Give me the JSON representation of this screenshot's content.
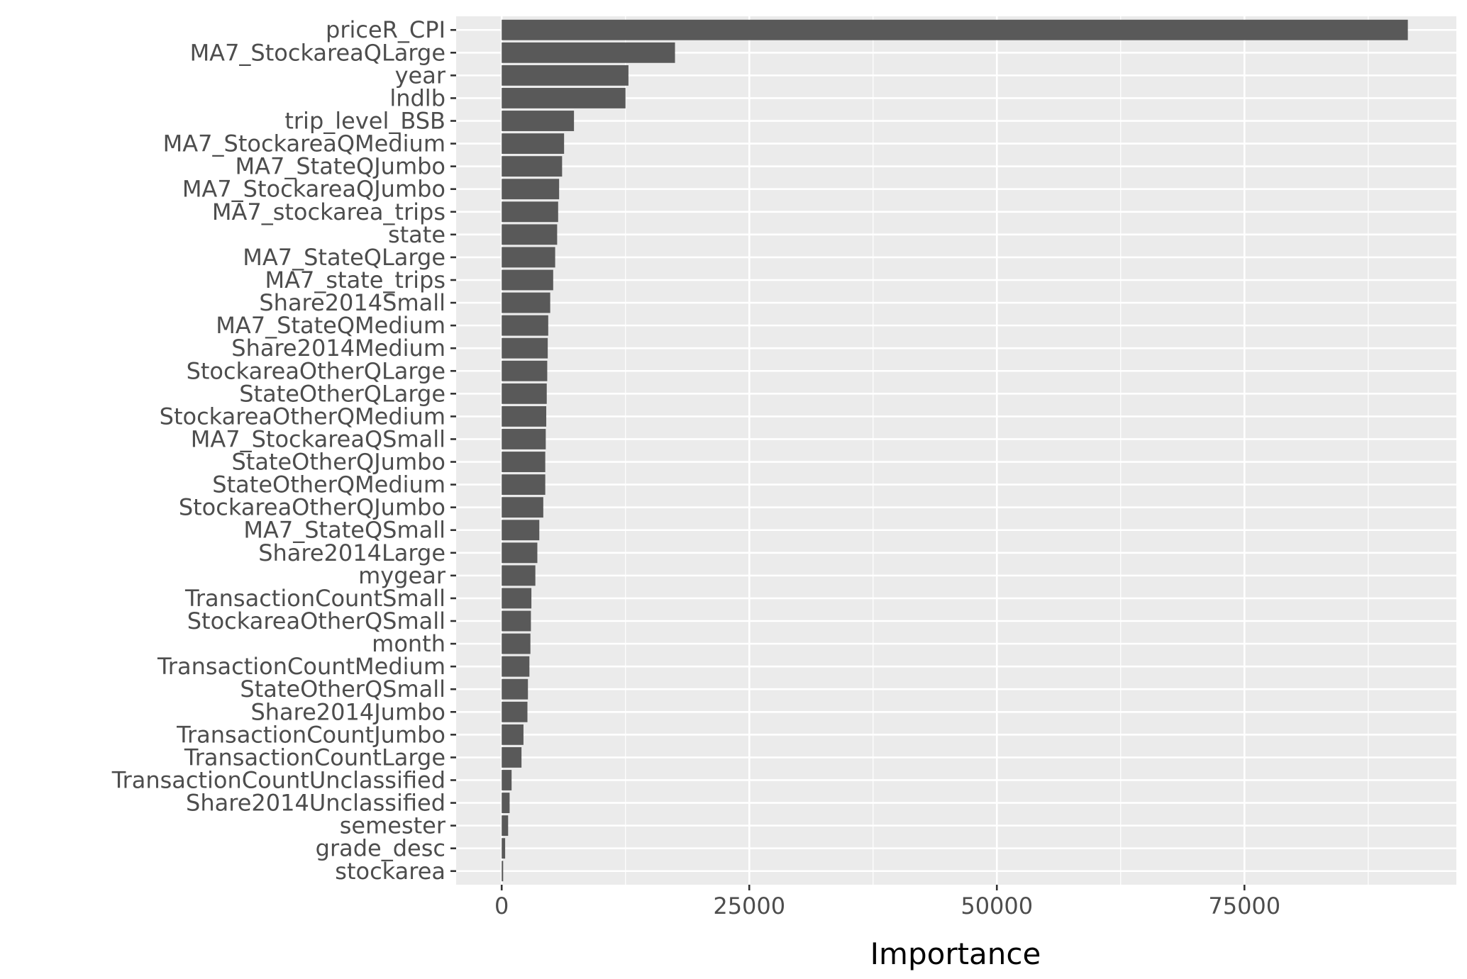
{
  "chart_data": {
    "type": "bar",
    "orientation": "horizontal",
    "xlabel": "Importance",
    "ylabel": "",
    "xlim": [
      -4600,
      96400
    ],
    "x_ticks": [
      0,
      25000,
      50000,
      75000
    ],
    "x_tick_labels": [
      "0",
      "25000",
      "50000",
      "75000"
    ],
    "grid": true,
    "colors": {
      "panel": "#ebebeb",
      "grid": "#ffffff",
      "bar": "#595959",
      "text": "#4d4d4d",
      "tick": "#333333"
    },
    "categories": [
      "priceR_CPI",
      "MA7_StockareaQLarge",
      "year",
      "lndlb",
      "trip_level_BSB",
      "MA7_StockareaQMedium",
      "MA7_StateQJumbo",
      "MA7_StockareaQJumbo",
      "MA7_stockarea_trips",
      "state",
      "MA7_StateQLarge",
      "MA7_state_trips",
      "Share2014Small",
      "MA7_StateQMedium",
      "Share2014Medium",
      "StockareaOtherQLarge",
      "StateOtherQLarge",
      "StockareaOtherQMedium",
      "MA7_StockareaQSmall",
      "StateOtherQJumbo",
      "StateOtherQMedium",
      "StockareaOtherQJumbo",
      "MA7_StateQSmall",
      "Share2014Large",
      "mygear",
      "TransactionCountSmall",
      "StockareaOtherQSmall",
      "month",
      "TransactionCountMedium",
      "StateOtherQSmall",
      "Share2014Jumbo",
      "TransactionCountJumbo",
      "TransactionCountLarge",
      "TransactionCountUnclassified",
      "Share2014Unclassified",
      "semester",
      "grade_desc",
      "stockarea"
    ],
    "values": [
      91500,
      17500,
      12800,
      12500,
      7300,
      6300,
      6100,
      5800,
      5700,
      5600,
      5400,
      5200,
      4900,
      4700,
      4650,
      4600,
      4550,
      4500,
      4450,
      4400,
      4400,
      4200,
      3800,
      3600,
      3400,
      3000,
      2950,
      2900,
      2800,
      2650,
      2600,
      2200,
      2000,
      1000,
      800,
      650,
      350,
      150
    ]
  }
}
